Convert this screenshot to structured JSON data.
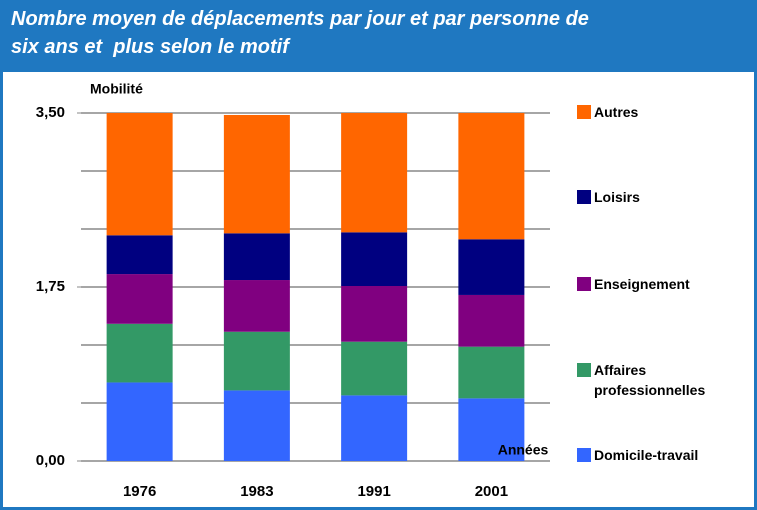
{
  "chart_data": {
    "type": "stacked_bar",
    "title": [
      "Nombre moyen de déplacements par jour et par personne de",
      "six ans et  plus selon le motif"
    ],
    "y_label": "Mobilité",
    "x_label": "Années",
    "categories": [
      "1976",
      "1983",
      "1991",
      "2001"
    ],
    "series": [
      {
        "name": "Domicile-travail",
        "color": "#3366ff",
        "values": [
          0.79,
          0.71,
          0.66,
          0.63
        ]
      },
      {
        "name": "Affaires professionnelles",
        "color": "#339966",
        "values": [
          0.59,
          0.59,
          0.54,
          0.52
        ]
      },
      {
        "name": "Enseignement",
        "color": "#800080",
        "values": [
          0.5,
          0.52,
          0.56,
          0.52
        ]
      },
      {
        "name": "Loisirs",
        "color": "#000080",
        "values": [
          0.39,
          0.47,
          0.54,
          0.56
        ]
      },
      {
        "name": "Autres",
        "color": "#ff6600",
        "values": [
          1.23,
          1.19,
          1.2,
          1.27
        ]
      }
    ],
    "ylim": [
      0,
      3.5
    ],
    "yticks": [
      {
        "value": 0,
        "label": "0,00"
      },
      {
        "value": 1.75,
        "label": "1,75"
      },
      {
        "value": 3.5,
        "label": "3,50"
      }
    ],
    "grid_lines": [
      0,
      0.5833,
      1.1667,
      1.75,
      2.3333,
      2.9167,
      3.5
    ],
    "grid": true,
    "legend": "right"
  }
}
